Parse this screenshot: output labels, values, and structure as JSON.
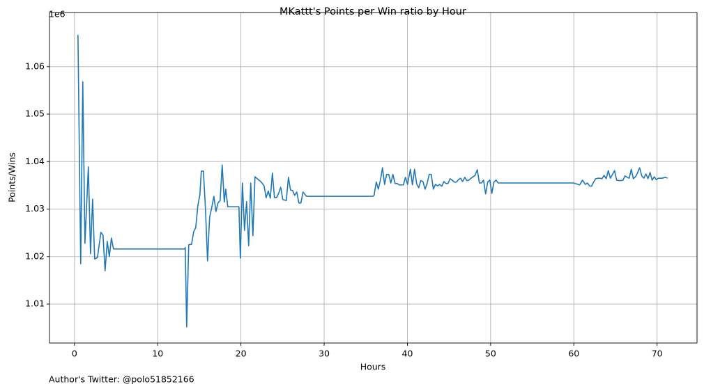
{
  "chart_data": {
    "type": "line",
    "title": "MKattt's Points per Win ratio by Hour",
    "x_label": "Hours",
    "y_label": "Points/Wins",
    "y_offset_label": "1e6",
    "annotation": "Author's Twitter: @polo51852166",
    "color": "#1f77b4",
    "grid": true,
    "xlim": [
      -3.0,
      74.8
    ],
    "ylim": [
      1.0018,
      1.0714
    ],
    "xticks": [
      0,
      10,
      20,
      30,
      40,
      50,
      60,
      70
    ],
    "yticks": [
      1.01,
      1.02,
      1.03,
      1.04,
      1.05,
      1.06
    ],
    "x": [
      0.42,
      0.75,
      1.0,
      1.26,
      1.67,
      1.93,
      2.18,
      2.43,
      2.76,
      3.18,
      3.43,
      3.68,
      3.94,
      4.19,
      4.44,
      4.69,
      13.23,
      13.31,
      13.48,
      13.73,
      14.07,
      14.32,
      14.57,
      14.82,
      15.07,
      15.24,
      15.49,
      15.74,
      15.99,
      16.24,
      16.5,
      16.75,
      17.0,
      17.25,
      17.5,
      17.75,
      18.0,
      18.17,
      18.42,
      19.76,
      19.93,
      20.18,
      20.43,
      20.68,
      20.93,
      21.18,
      21.44,
      21.69,
      22.44,
      22.78,
      23.03,
      23.28,
      23.53,
      23.78,
      24.03,
      24.28,
      24.53,
      24.78,
      25.03,
      25.45,
      25.71,
      25.96,
      26.21,
      26.46,
      26.71,
      26.96,
      27.21,
      27.46,
      27.88,
      35.84,
      36.0,
      36.26,
      36.51,
      36.76,
      37.01,
      37.26,
      37.51,
      37.76,
      38.01,
      38.26,
      38.52,
      38.77,
      39.02,
      39.52,
      39.77,
      40.02,
      40.36,
      40.61,
      40.86,
      41.11,
      41.36,
      41.61,
      41.87,
      42.12,
      42.37,
      42.62,
      42.87,
      43.12,
      43.37,
      43.62,
      43.87,
      44.13,
      44.38,
      44.63,
      44.88,
      45.13,
      45.38,
      45.63,
      45.89,
      46.14,
      46.39,
      46.64,
      46.89,
      47.14,
      47.39,
      47.64,
      47.89,
      48.14,
      48.4,
      48.65,
      48.9,
      49.15,
      49.4,
      49.65,
      49.9,
      50.15,
      50.4,
      50.66,
      50.91,
      59.95,
      60.7,
      61.04,
      61.38,
      61.63,
      61.88,
      62.13,
      62.38,
      62.63,
      62.88,
      63.13,
      63.38,
      63.63,
      63.89,
      64.14,
      64.39,
      64.64,
      64.89,
      65.14,
      65.39,
      65.64,
      65.9,
      66.15,
      66.4,
      66.65,
      66.9,
      67.15,
      67.4,
      67.65,
      67.9,
      68.16,
      68.41,
      68.66,
      68.91,
      69.16,
      69.41,
      69.66,
      69.91,
      70.17,
      70.59,
      71.0,
      71.25
    ],
    "values": [
      1.0667,
      1.0185,
      1.0568,
      1.0228,
      1.0389,
      1.0206,
      1.0321,
      1.0195,
      1.0198,
      1.0251,
      1.0245,
      1.017,
      1.0232,
      1.02,
      1.0239,
      1.0216,
      1.0216,
      1.0219,
      1.0052,
      1.0225,
      1.0226,
      1.0252,
      1.0261,
      1.0307,
      1.033,
      1.038,
      1.038,
      1.0301,
      1.0191,
      1.0283,
      1.0304,
      1.0327,
      1.0295,
      1.0313,
      1.0318,
      1.0393,
      1.0315,
      1.0342,
      1.0305,
      1.0305,
      1.0197,
      1.0355,
      1.0255,
      1.0316,
      1.0223,
      1.0355,
      1.0244,
      1.0368,
      1.0357,
      1.0349,
      1.0324,
      1.0338,
      1.0323,
      1.0376,
      1.0324,
      1.0324,
      1.0333,
      1.0346,
      1.032,
      1.0318,
      1.0367,
      1.034,
      1.0339,
      1.0329,
      1.0336,
      1.0313,
      1.0313,
      1.0336,
      1.0327,
      1.0327,
      1.0329,
      1.0357,
      1.0342,
      1.0361,
      1.0387,
      1.0352,
      1.0373,
      1.0373,
      1.0355,
      1.0373,
      1.0354,
      1.0354,
      1.0351,
      1.0351,
      1.0367,
      1.0352,
      1.0384,
      1.0351,
      1.0384,
      1.0354,
      1.0345,
      1.036,
      1.0358,
      1.0342,
      1.0354,
      1.0373,
      1.0373,
      1.0342,
      1.0352,
      1.0349,
      1.0352,
      1.0348,
      1.0358,
      1.0354,
      1.0354,
      1.0364,
      1.0361,
      1.0357,
      1.0357,
      1.0362,
      1.0365,
      1.0358,
      1.0367,
      1.036,
      1.0361,
      1.0365,
      1.0368,
      1.0371,
      1.0383,
      1.0355,
      1.0355,
      1.0361,
      1.0332,
      1.0357,
      1.0361,
      1.0333,
      1.0357,
      1.0361,
      1.0355,
      1.0355,
      1.0351,
      1.0361,
      1.0352,
      1.0355,
      1.0349,
      1.0348,
      1.0357,
      1.0364,
      1.0365,
      1.0365,
      1.0364,
      1.0371,
      1.0364,
      1.0381,
      1.0365,
      1.0373,
      1.0381,
      1.0361,
      1.036,
      1.036,
      1.0361,
      1.037,
      1.0367,
      1.0365,
      1.0384,
      1.0364,
      1.0368,
      1.0376,
      1.0387,
      1.037,
      1.0365,
      1.0374,
      1.0364,
      1.0377,
      1.0361,
      1.0368,
      1.0362,
      1.0365,
      1.0365,
      1.0367,
      1.0365
    ]
  }
}
